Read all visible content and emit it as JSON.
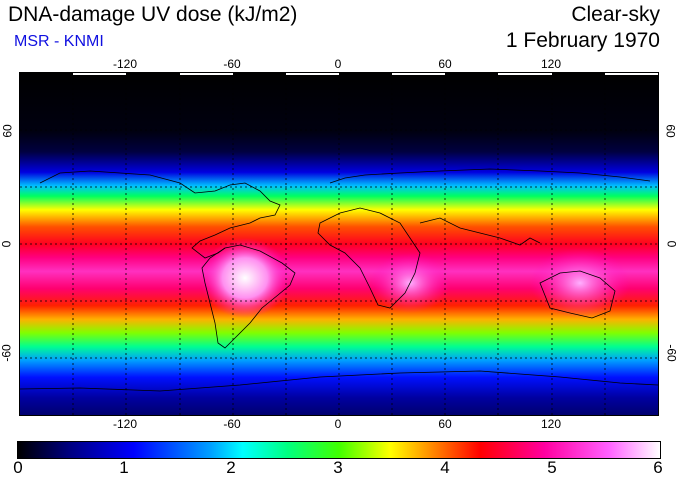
{
  "header": {
    "title": "DNA-damage UV dose (kJ/m2)",
    "subtitle": "MSR - KNMI",
    "sky_condition": "Clear-sky",
    "date": "1 February 1970"
  },
  "map": {
    "lon_ticks": [
      "-120",
      "-60",
      "0",
      "60",
      "120"
    ],
    "lat_ticks_left": [
      "60",
      "0",
      "-60"
    ],
    "lat_ticks_right": [
      "60",
      "0",
      "-60"
    ],
    "colors": {
      "scale": [
        "#000000",
        "#000070",
        "#0000ff",
        "#00ffff",
        "#00ff00",
        "#ffff00",
        "#ff0000",
        "#ff00ff",
        "#ffffff"
      ]
    }
  },
  "colorbar": {
    "labels": [
      "0",
      "1",
      "2",
      "3",
      "4",
      "5",
      "6"
    ]
  }
}
